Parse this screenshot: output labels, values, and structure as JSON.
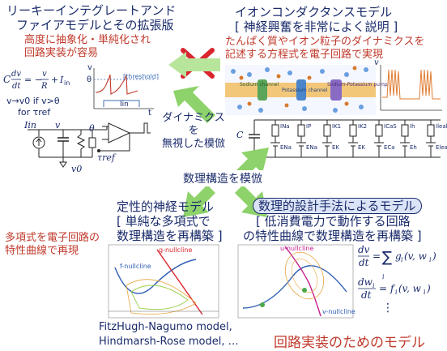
{
  "top_left": {
    "title_line1": "リーキーインテグレートアンド",
    "title_line2": "ファイアモデルとその拡張版",
    "note_line1": "高度に抽象化・単純化され",
    "note_line2": "回路実装が容易",
    "eq_cond1": "v→v0 if v>θ",
    "eq_cond2": "for τref",
    "threshold_label": "threshold",
    "theta": "θ",
    "v_label": "v",
    "t_label": "t",
    "i_in_label": "Iin",
    "circuit_iin": "Iin",
    "circuit_v": "v",
    "circuit_theta": "θ",
    "circuit_v0": "v0",
    "circuit_tref": "τref"
  },
  "top_right": {
    "title_line1": "イオンコンダクタンスモデル",
    "title_line2": "[ 神経興奮を非常によく説明 ]",
    "note_line1": "たんぱく質やイオン粒子のダイナミクスを",
    "note_line2": "記述する方程式を電子回路で実現",
    "membrane_labels": [
      "Sodium channel",
      "Potassium channel",
      "Sodium-Potassium pump"
    ],
    "circuit_currents": [
      "INa",
      "IP",
      "IK1",
      "IK2",
      "ICaS",
      "Ih",
      "Ileak"
    ],
    "circuit_sources": [
      "ENa",
      "ENa",
      "EK",
      "EK",
      "ECa",
      "Eh",
      "Eleak"
    ],
    "c_label": "C",
    "v_label": "v"
  },
  "middle": {
    "ignore_line1": "ダイナミクスを",
    "ignore_line2": "無視した模倣",
    "structure_label": "数理構造を模倣"
  },
  "bottom_left": {
    "title_line1": "定性的神経モデル",
    "title_line2": "[ 単純な多項式で",
    "title_line3": "数理構造を再構築 ]",
    "side_line1": "多項式を電子回路の",
    "side_line2": "特性曲線で再現",
    "model_line1": "FitzHugh-Nagumo model,",
    "model_line2": "Hindmarsh-Rose model, …",
    "g_nullcline": "g-nullcline",
    "f_nullcline": "f-nullcline"
  },
  "bottom_right": {
    "title_line1": "数理的設計手法によるモデル",
    "title_line2": "[ 低消費電力で動作する回路",
    "title_line3": "の特性曲線で数理構造を再構築 ]",
    "footer": "回路実装のためのモデル",
    "u_nullcline": "u-nullcline",
    "v_nullcline": "v-nullcline",
    "eq_sum_index": "i",
    "eq_dots": "⋮"
  },
  "colors": {
    "navy": "#1a2b6b",
    "red": "#c0392b",
    "green_arrow": "#8dd26a",
    "cross": "#d9252e",
    "box_fill": "#dbe3f7",
    "box_stroke": "#1a2b6b"
  }
}
